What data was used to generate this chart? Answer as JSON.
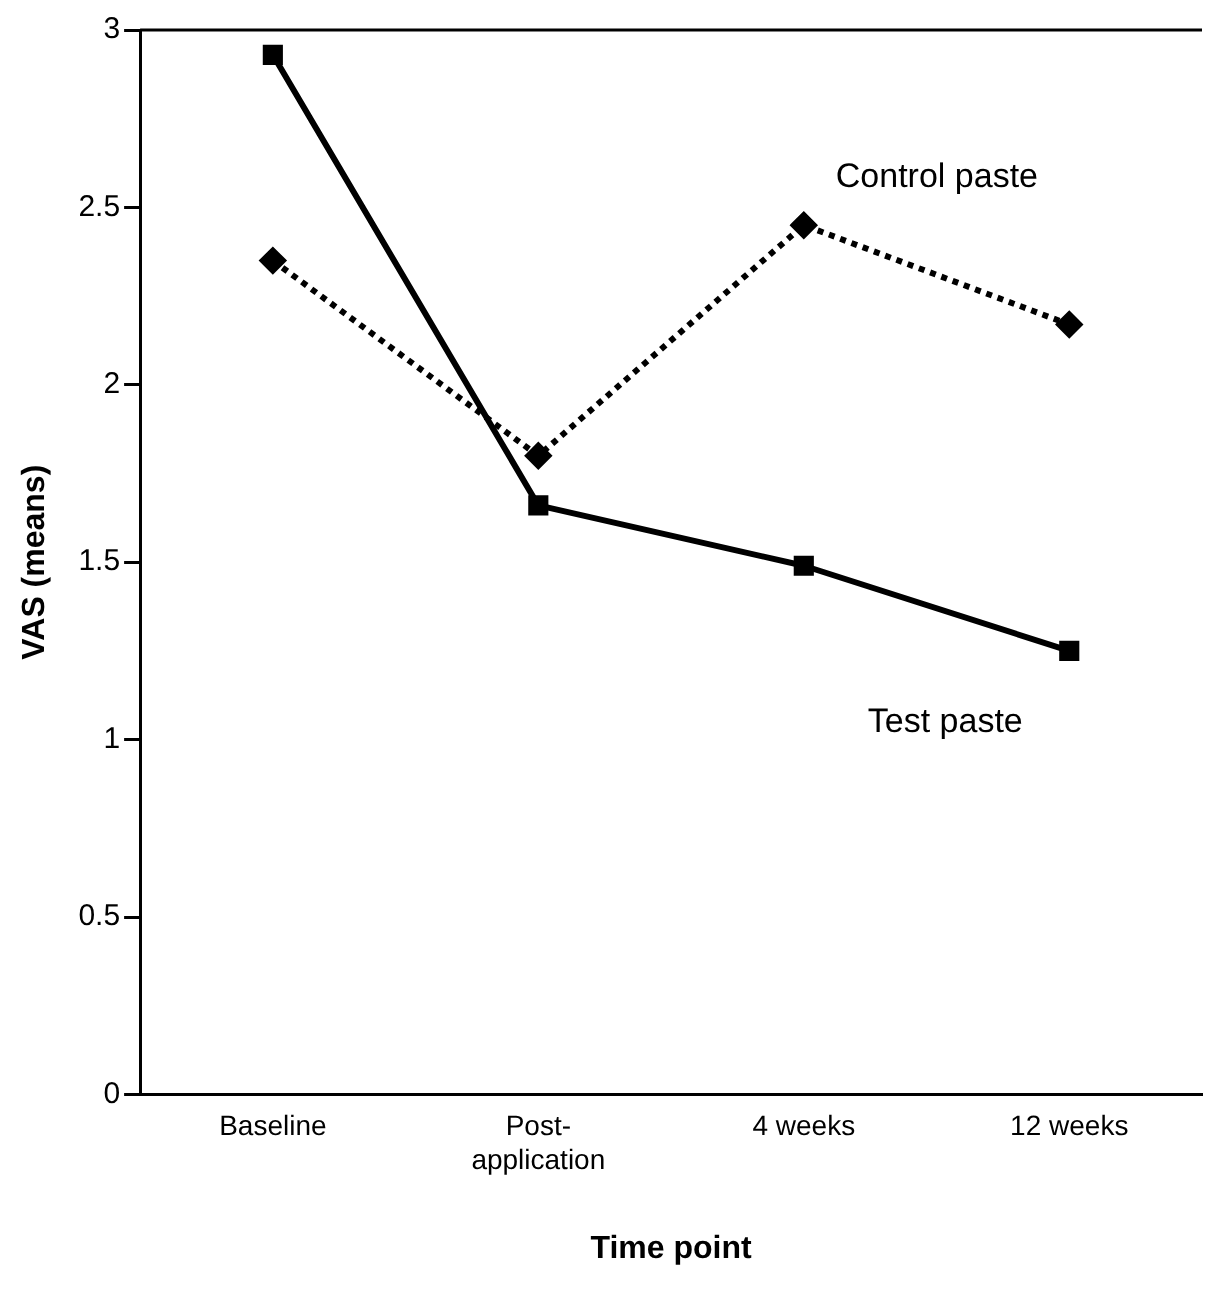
{
  "chart_data": {
    "type": "line",
    "xlabel": "Time point",
    "ylabel": "VAS (means)",
    "categories": [
      "Baseline",
      "Post-application",
      "4 weeks",
      "12 weeks"
    ],
    "series": [
      {
        "name": "Test paste",
        "color": "#000000",
        "marker": "square",
        "line_style": "solid",
        "values": [
          2.93,
          1.66,
          1.49,
          1.25
        ]
      },
      {
        "name": "Control paste",
        "color": "#000000",
        "marker": "diamond",
        "line_style": "dotted",
        "values": [
          2.35,
          1.8,
          2.45,
          2.17
        ]
      }
    ],
    "ylim": [
      0,
      3
    ],
    "yticks": [
      0,
      0.5,
      1,
      1.5,
      2,
      2.5,
      3
    ],
    "grid": false,
    "legend": false
  }
}
